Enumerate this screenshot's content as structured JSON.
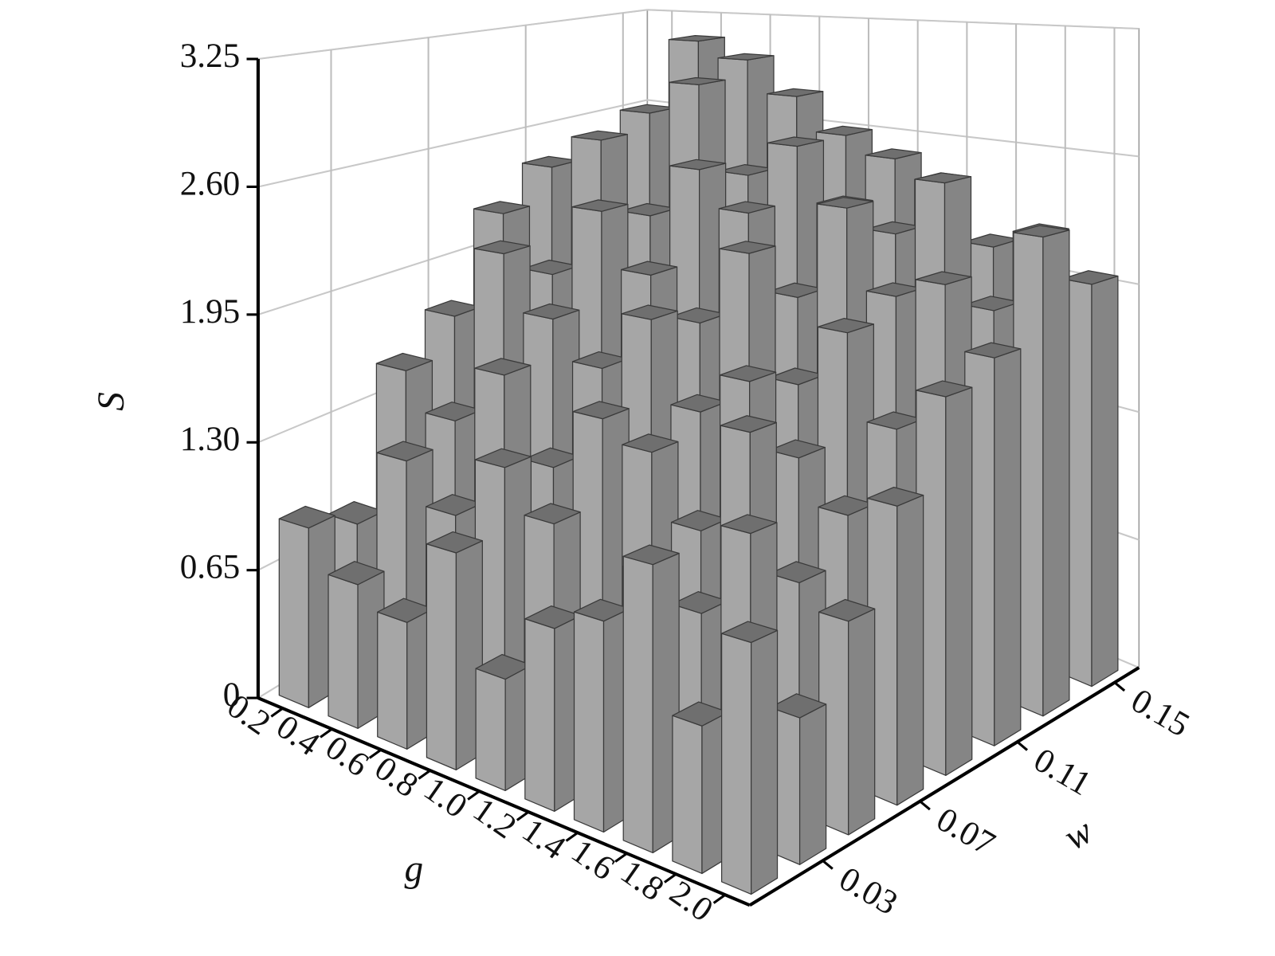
{
  "chart_data": {
    "type": "bar3d",
    "x_label": "g",
    "y_label": "w",
    "z_label": "S",
    "x_categories": [
      "0.2",
      "0.4",
      "0.6",
      "0.8",
      "1.0",
      "1.2",
      "1.4",
      "1.6",
      "1.8",
      "2.0"
    ],
    "y_categories": [
      null,
      "0.03",
      null,
      "0.07",
      null,
      "0.11",
      null,
      "0.15"
    ],
    "values": [
      [
        0.9,
        0.7,
        0.6,
        1.0,
        0.5,
        0.8,
        0.9,
        1.2,
        0.6,
        1.0
      ],
      [
        0.8,
        1.2,
        1.0,
        1.3,
        1.1,
        0.7,
        1.0,
        0.9,
        1.3,
        0.6
      ],
      [
        1.5,
        1.3,
        1.6,
        1.2,
        1.5,
        1.4,
        1.1,
        1.6,
        1.0,
        0.9
      ],
      [
        1.7,
        2.1,
        1.8,
        1.6,
        1.9,
        1.5,
        1.7,
        1.4,
        1.2,
        1.3
      ],
      [
        2.2,
        1.9,
        2.3,
        2.0,
        1.8,
        2.2,
        1.6,
        1.9,
        1.5,
        1.7
      ],
      [
        2.4,
        2.6,
        2.2,
        2.5,
        2.3,
        1.9,
        2.4,
        2.0,
        2.1,
        1.8
      ],
      [
        2.0,
        2.7,
        2.9,
        2.4,
        2.6,
        2.3,
        2.2,
        2.5,
        1.9,
        2.3
      ],
      [
        2.3,
        3.1,
        3.0,
        2.8,
        2.6,
        2.5,
        2.4,
        2.1,
        2.2,
        2.0
      ]
    ],
    "zlim": [
      0,
      3.25
    ],
    "zticks": [
      0,
      0.65,
      {
        "value": 1.3,
        "label": "1.30"
      },
      1.95,
      {
        "value": 2.6,
        "label": "2.60"
      },
      3.25
    ],
    "color": "#a6a6a6",
    "side_color": "#858585",
    "top_color": "#6f6f6f",
    "grid": true
  }
}
